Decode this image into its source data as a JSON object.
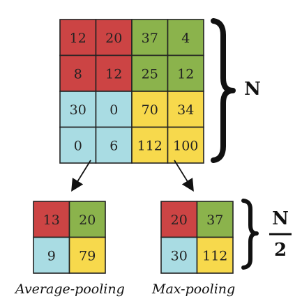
{
  "colors": {
    "red": "#cc4444",
    "green": "#8bb34c",
    "blue": "#a9dce3",
    "yellow": "#f7d94c"
  },
  "input_grid": {
    "values": [
      [
        "12",
        "20",
        "37",
        "4"
      ],
      [
        "8",
        "12",
        "25",
        "12"
      ],
      [
        "30",
        "0",
        "70",
        "34"
      ],
      [
        "0",
        "6",
        "112",
        "100"
      ]
    ],
    "colors": [
      [
        "red",
        "red",
        "green",
        "green"
      ],
      [
        "red",
        "red",
        "green",
        "green"
      ],
      [
        "blue",
        "blue",
        "yellow",
        "yellow"
      ],
      [
        "blue",
        "blue",
        "yellow",
        "yellow"
      ]
    ]
  },
  "average_pool": {
    "values": [
      [
        "13",
        "20"
      ],
      [
        "9",
        "79"
      ]
    ],
    "colors": [
      [
        "red",
        "green"
      ],
      [
        "blue",
        "yellow"
      ]
    ]
  },
  "max_pool": {
    "values": [
      [
        "20",
        "37"
      ],
      [
        "30",
        "112"
      ]
    ],
    "colors": [
      [
        "red",
        "green"
      ],
      [
        "blue",
        "yellow"
      ]
    ]
  },
  "labels": {
    "average": "Average-pooling",
    "max": "Max-pooling",
    "n_big": "N",
    "n_small_num": "N",
    "n_small_den": "2"
  }
}
